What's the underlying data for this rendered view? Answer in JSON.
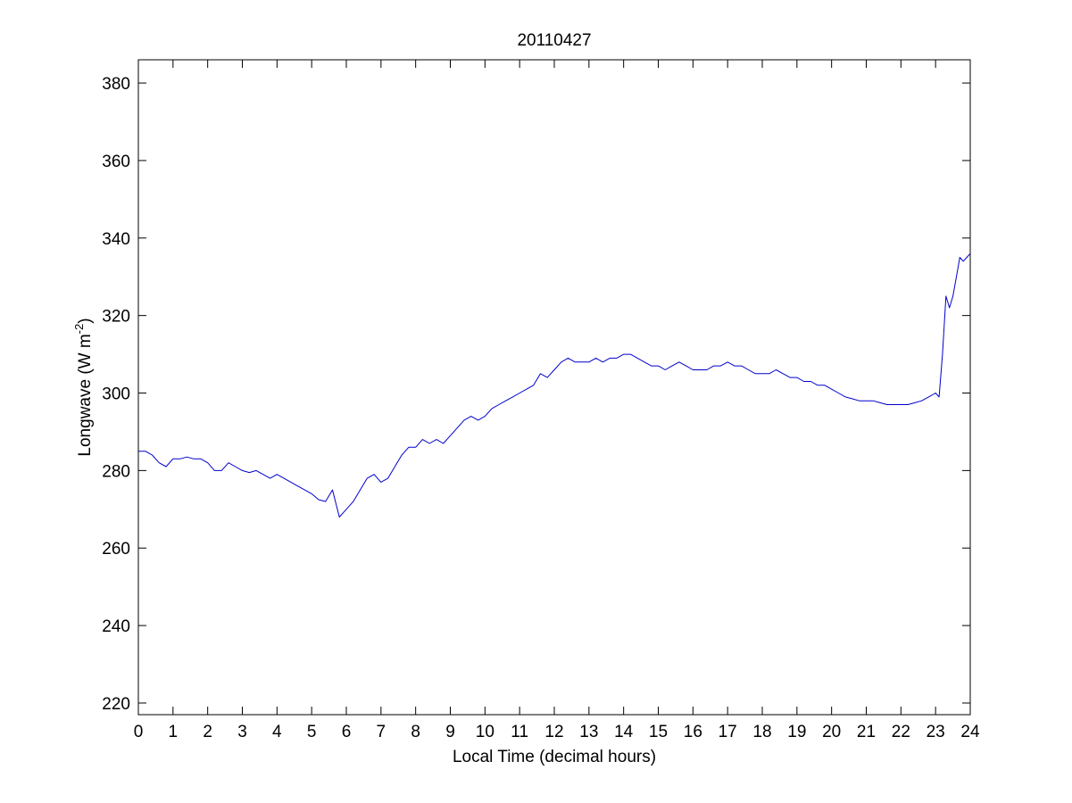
{
  "chart_data": {
    "type": "line",
    "title": "20110427",
    "xlabel": "Local Time (decimal hours)",
    "ylabel": {
      "main": "Longwave (W m",
      "superscript": "-2",
      "close": ")"
    },
    "xlim": [
      0,
      24
    ],
    "ylim": [
      217,
      386
    ],
    "xticks": [
      "0",
      "1",
      "2",
      "3",
      "4",
      "5",
      "6",
      "7",
      "8",
      "9",
      "10",
      "11",
      "12",
      "13",
      "14",
      "15",
      "16",
      "17",
      "18",
      "19",
      "20",
      "21",
      "22",
      "23",
      "24"
    ],
    "yticks": [
      "220",
      "240",
      "260",
      "280",
      "300",
      "320",
      "340",
      "360",
      "380"
    ],
    "grid": false,
    "line_color": "#0000cc",
    "series": [
      {
        "x": [
          0,
          0.2,
          0.4,
          0.6,
          0.8,
          1.0,
          1.2,
          1.4,
          1.6,
          1.8,
          2.0,
          2.2,
          2.4,
          2.6,
          2.8,
          3.0,
          3.2,
          3.4,
          3.6,
          3.8,
          4.0,
          4.2,
          4.4,
          4.6,
          4.8,
          5.0,
          5.2,
          5.4,
          5.6,
          5.8,
          6.0,
          6.2,
          6.4,
          6.6,
          6.8,
          7.0,
          7.2,
          7.4,
          7.6,
          7.8,
          8.0,
          8.2,
          8.4,
          8.6,
          8.8,
          9.0,
          9.2,
          9.4,
          9.6,
          9.8,
          10.0,
          10.2,
          10.4,
          10.6,
          10.8,
          11.0,
          11.2,
          11.4,
          11.6,
          11.8,
          12.0,
          12.2,
          12.4,
          12.6,
          12.8,
          13.0,
          13.2,
          13.4,
          13.6,
          13.8,
          14.0,
          14.2,
          14.4,
          14.6,
          14.8,
          15.0,
          15.2,
          15.4,
          15.6,
          15.8,
          16.0,
          16.2,
          16.4,
          16.6,
          16.8,
          17.0,
          17.2,
          17.4,
          17.6,
          17.8,
          18.0,
          18.2,
          18.4,
          18.6,
          18.8,
          19.0,
          19.2,
          19.4,
          19.6,
          19.8,
          20.0,
          20.2,
          20.4,
          20.6,
          20.8,
          21.0,
          21.2,
          21.4,
          21.6,
          21.8,
          22.0,
          22.2,
          22.4,
          22.6,
          22.8,
          23.0,
          23.1,
          23.2,
          23.3,
          23.4,
          23.5,
          23.6,
          23.7,
          23.8,
          23.9,
          24.0
        ],
        "y": [
          285,
          285,
          284,
          282,
          281,
          283,
          283,
          283.5,
          283,
          283,
          282,
          280,
          280,
          282,
          281,
          280,
          279.5,
          280,
          279,
          278,
          279,
          278,
          277,
          276,
          275,
          274,
          272.5,
          272,
          275,
          268,
          270,
          272,
          275,
          278,
          279,
          277,
          278,
          281,
          284,
          286,
          286,
          288,
          287,
          288,
          287,
          289,
          291,
          293,
          294,
          293,
          294,
          296,
          297,
          298,
          299,
          300,
          301,
          302,
          305,
          304,
          306,
          308,
          309,
          308,
          308,
          308,
          309,
          308,
          309,
          309,
          310,
          310,
          309,
          308,
          307,
          307,
          306,
          307,
          308,
          307,
          306,
          306,
          306,
          307,
          307,
          308,
          307,
          307,
          306,
          305,
          305,
          305,
          306,
          305,
          304,
          304,
          303,
          303,
          302,
          302,
          301,
          300,
          299,
          298.5,
          298,
          298,
          298,
          297.5,
          297,
          297,
          297,
          297,
          297.5,
          298,
          299,
          300,
          299,
          310,
          325,
          322,
          325,
          330,
          335,
          334,
          335,
          336
        ]
      }
    ]
  }
}
